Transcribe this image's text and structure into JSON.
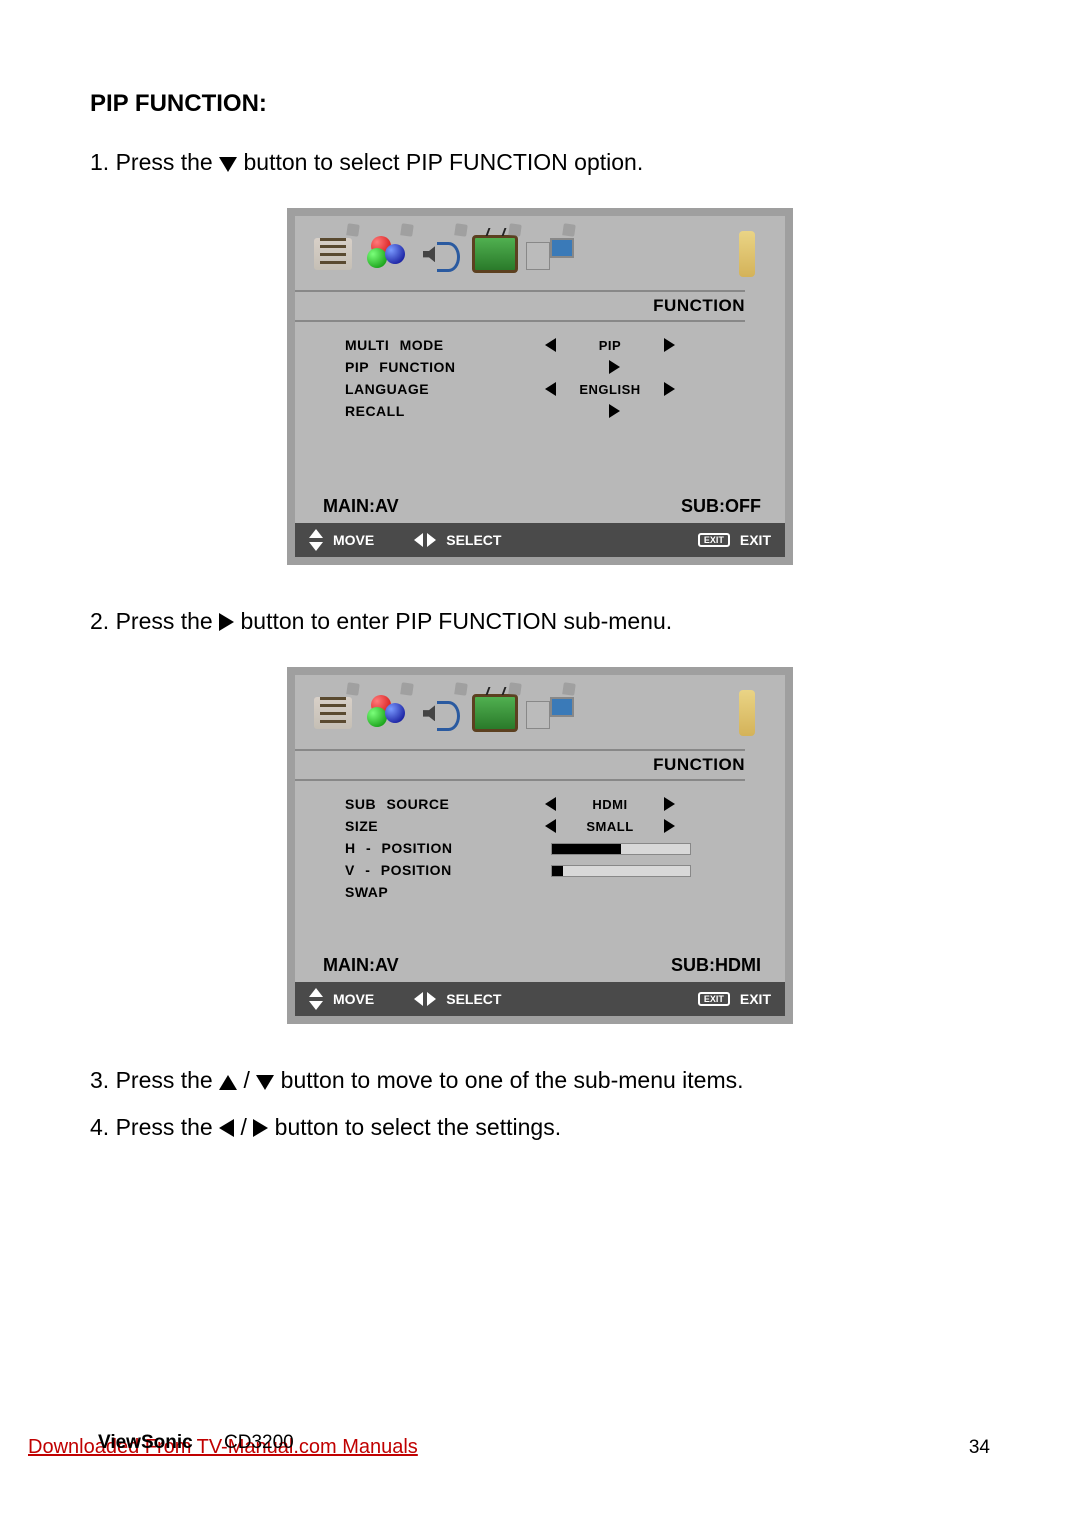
{
  "section_title": "PIP FUNCTION:",
  "step1": {
    "prefix": "1. Press the ",
    "suffix": " button to select PIP FUNCTION option."
  },
  "step2": {
    "prefix": "2. Press the ",
    "suffix": " button to enter PIP FUNCTION sub-menu."
  },
  "step3": {
    "prefix": "3. Press the ",
    "mid": " / ",
    "suffix": " button to move to one of the sub-menu items."
  },
  "step4": {
    "prefix": "4. Press the ",
    "mid": " / ",
    "suffix": " button to select the settings."
  },
  "osd1": {
    "title": "FUNCTION",
    "rows": [
      {
        "label": "MULTI   MODE",
        "value": "PIP",
        "has_lr": true
      },
      {
        "label": "PIP   FUNCTION",
        "value": "",
        "has_enter": true
      },
      {
        "label": "LANGUAGE",
        "value": "ENGLISH",
        "has_lr": true
      },
      {
        "label": "RECALL",
        "value": "",
        "has_enter": true
      }
    ],
    "main_label": "MAIN:AV",
    "sub_label": "SUB:OFF",
    "nav_move": "MOVE",
    "nav_select": "SELECT",
    "nav_exit_box": "EXIT",
    "nav_exit": "EXIT"
  },
  "osd2": {
    "title": "FUNCTION",
    "rows": [
      {
        "label": "SUB   SOURCE",
        "value": "HDMI",
        "has_lr": true
      },
      {
        "label": "SIZE",
        "value": "SMALL",
        "has_lr": true
      },
      {
        "label": "H - POSITION",
        "slider_pct": 50
      },
      {
        "label": "V - POSITION",
        "slider_pct": 8
      },
      {
        "label": "SWAP"
      }
    ],
    "main_label": "MAIN:AV",
    "sub_label": "SUB:HDMI",
    "nav_move": "MOVE",
    "nav_select": "SELECT",
    "nav_exit_box": "EXIT",
    "nav_exit": "EXIT"
  },
  "footer": {
    "brand": "ViewSonic",
    "model": "CD3200",
    "link": "Downloaded From TV-Manual.com Manuals",
    "page": "34"
  },
  "colors": {
    "page_bg": "#ffffff",
    "text": "#000000",
    "osd_bg": "#b8b8b8",
    "osd_border": "#9f9f9f",
    "nav_bg": "#4a4a4a",
    "link": "#c00000"
  }
}
